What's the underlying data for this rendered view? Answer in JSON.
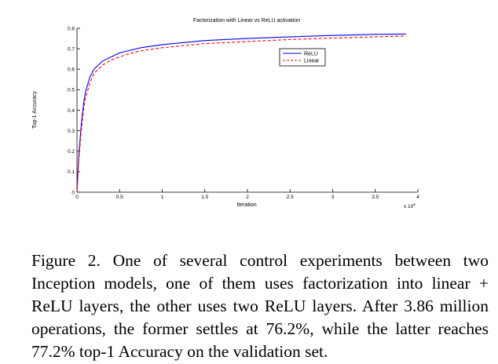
{
  "chart_data": {
    "type": "line",
    "title": "Factorization with Linear vs ReLU activation",
    "xlabel": "Iteration",
    "ylabel": "Top-1 Accuracy",
    "x_multiplier": "x 10^6",
    "xlim": [
      0,
      4
    ],
    "ylim": [
      0,
      0.8
    ],
    "x_ticks": [
      "0",
      "0.5",
      "1",
      "1.5",
      "2",
      "2.5",
      "3",
      "3.5",
      "4"
    ],
    "y_ticks": [
      "0",
      "0.1",
      "0.2",
      "0.3",
      "0.4",
      "0.5",
      "0.6",
      "0.7",
      "0.8"
    ],
    "legend_position": "top-right",
    "grid": false,
    "series": [
      {
        "name": "ReLU",
        "color": "#0000ff",
        "style": "solid",
        "x": [
          0,
          0.02,
          0.05,
          0.08,
          0.1,
          0.15,
          0.2,
          0.25,
          0.3,
          0.4,
          0.5,
          0.6,
          0.75,
          1.0,
          1.25,
          1.5,
          2.0,
          2.5,
          3.0,
          3.5,
          3.86
        ],
        "y": [
          0,
          0.17,
          0.33,
          0.44,
          0.49,
          0.56,
          0.6,
          0.62,
          0.64,
          0.66,
          0.68,
          0.69,
          0.705,
          0.72,
          0.73,
          0.74,
          0.75,
          0.758,
          0.765,
          0.77,
          0.772
        ]
      },
      {
        "name": "Linear",
        "color": "#ff0000",
        "style": "dashed",
        "x": [
          0,
          0.02,
          0.05,
          0.08,
          0.1,
          0.15,
          0.2,
          0.25,
          0.3,
          0.4,
          0.5,
          0.6,
          0.75,
          1.0,
          1.25,
          1.5,
          2.0,
          2.5,
          3.0,
          3.5,
          3.86
        ],
        "y": [
          0,
          0.15,
          0.3,
          0.41,
          0.46,
          0.53,
          0.58,
          0.6,
          0.62,
          0.645,
          0.66,
          0.675,
          0.69,
          0.705,
          0.715,
          0.725,
          0.735,
          0.745,
          0.752,
          0.758,
          0.762
        ]
      }
    ]
  },
  "caption": "Figure 2. One of several control experiments between two Inception models, one of them uses factorization into linear + ReLU layers, the other uses two ReLU layers. After 3.86 million operations, the former settles at 76.2%, while the latter reaches 77.2% top-1 Accuracy on the validation set."
}
